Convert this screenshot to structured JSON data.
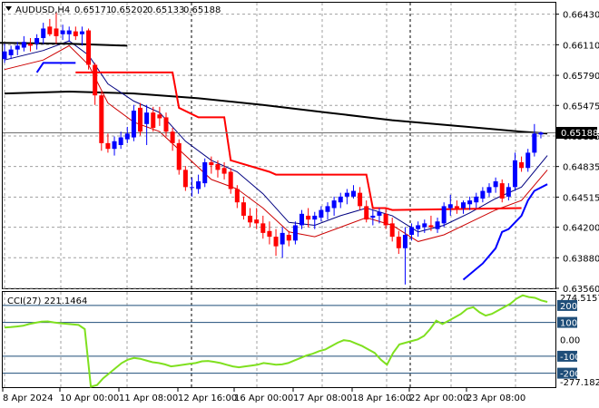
{
  "chart_data": {
    "type": "candlestick",
    "symbol": "AUDUSD,H4",
    "quote_line": [
      "0.65171",
      "0.65202",
      "0.65133",
      "0.65188"
    ],
    "current_price_label": "0.65188",
    "current_price": 0.65188,
    "price_axis": {
      "ticks": [
        "0.66430",
        "0.66110",
        "0.65790",
        "0.65475",
        "0.65155",
        "0.64835",
        "0.64515",
        "0.64200",
        "0.63880",
        "0.63560"
      ],
      "range": [
        0.6356,
        0.6655
      ]
    },
    "time_axis": {
      "labels": [
        "8 Apr 2024",
        "10 Apr 00:00",
        "11 Apr 08:00",
        "12 Apr 16:00",
        "16 Apr 00:00",
        "17 Apr 08:00",
        "18 Apr 16:00",
        "22 Apr 00:00",
        "23 Apr 08:00"
      ]
    },
    "candles": [
      {
        "o": 0.6596,
        "h": 0.6612,
        "l": 0.6592,
        "c": 0.6604
      },
      {
        "o": 0.66,
        "h": 0.661,
        "l": 0.6596,
        "c": 0.6606
      },
      {
        "o": 0.6606,
        "h": 0.6614,
        "l": 0.66,
        "c": 0.661
      },
      {
        "o": 0.6608,
        "h": 0.662,
        "l": 0.6604,
        "c": 0.6614
      },
      {
        "o": 0.6612,
        "h": 0.6618,
        "l": 0.6604,
        "c": 0.661
      },
      {
        "o": 0.6612,
        "h": 0.6622,
        "l": 0.6606,
        "c": 0.6618
      },
      {
        "o": 0.6618,
        "h": 0.6634,
        "l": 0.6612,
        "c": 0.6628
      },
      {
        "o": 0.663,
        "h": 0.6638,
        "l": 0.662,
        "c": 0.6622
      },
      {
        "o": 0.6628,
        "h": 0.6645,
        "l": 0.6612,
        "c": 0.662
      },
      {
        "o": 0.6622,
        "h": 0.6632,
        "l": 0.6616,
        "c": 0.6626
      },
      {
        "o": 0.6622,
        "h": 0.663,
        "l": 0.6614,
        "c": 0.6626
      },
      {
        "o": 0.6625,
        "h": 0.663,
        "l": 0.6616,
        "c": 0.662
      },
      {
        "o": 0.6622,
        "h": 0.663,
        "l": 0.661,
        "c": 0.6625
      },
      {
        "o": 0.6626,
        "h": 0.6628,
        "l": 0.6585,
        "c": 0.659
      },
      {
        "o": 0.659,
        "h": 0.6592,
        "l": 0.6548,
        "c": 0.6558
      },
      {
        "o": 0.6558,
        "h": 0.6562,
        "l": 0.65,
        "c": 0.6508
      },
      {
        "o": 0.6508,
        "h": 0.6518,
        "l": 0.6498,
        "c": 0.6502
      },
      {
        "o": 0.6502,
        "h": 0.6515,
        "l": 0.6495,
        "c": 0.651
      },
      {
        "o": 0.6506,
        "h": 0.652,
        "l": 0.6502,
        "c": 0.6514
      },
      {
        "o": 0.6512,
        "h": 0.6525,
        "l": 0.6508,
        "c": 0.6518
      },
      {
        "o": 0.6514,
        "h": 0.6548,
        "l": 0.651,
        "c": 0.6542
      },
      {
        "o": 0.6545,
        "h": 0.655,
        "l": 0.6516,
        "c": 0.652
      },
      {
        "o": 0.6528,
        "h": 0.6548,
        "l": 0.6506,
        "c": 0.654
      },
      {
        "o": 0.654,
        "h": 0.6546,
        "l": 0.652,
        "c": 0.6524
      },
      {
        "o": 0.6538,
        "h": 0.6546,
        "l": 0.6526,
        "c": 0.6534
      },
      {
        "o": 0.6535,
        "h": 0.654,
        "l": 0.6515,
        "c": 0.652
      },
      {
        "o": 0.652,
        "h": 0.6524,
        "l": 0.65,
        "c": 0.6508
      },
      {
        "o": 0.6508,
        "h": 0.6512,
        "l": 0.6475,
        "c": 0.648
      },
      {
        "o": 0.648,
        "h": 0.6484,
        "l": 0.6458,
        "c": 0.6462
      },
      {
        "o": 0.6462,
        "h": 0.6472,
        "l": 0.6452,
        "c": 0.6462
      },
      {
        "o": 0.646,
        "h": 0.6475,
        "l": 0.6455,
        "c": 0.6468
      },
      {
        "o": 0.6466,
        "h": 0.6492,
        "l": 0.6462,
        "c": 0.6488
      },
      {
        "o": 0.6488,
        "h": 0.6494,
        "l": 0.6476,
        "c": 0.6485
      },
      {
        "o": 0.6486,
        "h": 0.649,
        "l": 0.6472,
        "c": 0.648
      },
      {
        "o": 0.6482,
        "h": 0.6488,
        "l": 0.647,
        "c": 0.6476
      },
      {
        "o": 0.6478,
        "h": 0.6482,
        "l": 0.6455,
        "c": 0.646
      },
      {
        "o": 0.646,
        "h": 0.6464,
        "l": 0.644,
        "c": 0.6446
      },
      {
        "o": 0.6446,
        "h": 0.6452,
        "l": 0.6428,
        "c": 0.6432
      },
      {
        "o": 0.6432,
        "h": 0.644,
        "l": 0.642,
        "c": 0.6425
      },
      {
        "o": 0.6428,
        "h": 0.644,
        "l": 0.6418,
        "c": 0.6424
      },
      {
        "o": 0.6424,
        "h": 0.6432,
        "l": 0.6408,
        "c": 0.6414
      },
      {
        "o": 0.6416,
        "h": 0.6426,
        "l": 0.6402,
        "c": 0.641
      },
      {
        "o": 0.641,
        "h": 0.6418,
        "l": 0.639,
        "c": 0.64
      },
      {
        "o": 0.6402,
        "h": 0.642,
        "l": 0.6388,
        "c": 0.6414
      },
      {
        "o": 0.6412,
        "h": 0.6416,
        "l": 0.64,
        "c": 0.6406
      },
      {
        "o": 0.6406,
        "h": 0.6426,
        "l": 0.6402,
        "c": 0.6422
      },
      {
        "o": 0.6422,
        "h": 0.6438,
        "l": 0.6418,
        "c": 0.6434
      },
      {
        "o": 0.6432,
        "h": 0.644,
        "l": 0.642,
        "c": 0.6428
      },
      {
        "o": 0.6428,
        "h": 0.6436,
        "l": 0.6418,
        "c": 0.6432
      },
      {
        "o": 0.643,
        "h": 0.6442,
        "l": 0.6426,
        "c": 0.6438
      },
      {
        "o": 0.6436,
        "h": 0.6446,
        "l": 0.6428,
        "c": 0.6442
      },
      {
        "o": 0.644,
        "h": 0.6452,
        "l": 0.6432,
        "c": 0.6448
      },
      {
        "o": 0.6446,
        "h": 0.6456,
        "l": 0.644,
        "c": 0.6452
      },
      {
        "o": 0.6452,
        "h": 0.646,
        "l": 0.6444,
        "c": 0.6456
      },
      {
        "o": 0.6452,
        "h": 0.6464,
        "l": 0.645,
        "c": 0.6458
      },
      {
        "o": 0.6456,
        "h": 0.6462,
        "l": 0.6438,
        "c": 0.6442
      },
      {
        "o": 0.6442,
        "h": 0.6448,
        "l": 0.6425,
        "c": 0.6428
      },
      {
        "o": 0.643,
        "h": 0.6438,
        "l": 0.6422,
        "c": 0.6432
      },
      {
        "o": 0.6432,
        "h": 0.644,
        "l": 0.6424,
        "c": 0.6436
      },
      {
        "o": 0.6434,
        "h": 0.644,
        "l": 0.6418,
        "c": 0.6422
      },
      {
        "o": 0.6424,
        "h": 0.643,
        "l": 0.6405,
        "c": 0.641
      },
      {
        "o": 0.641,
        "h": 0.6416,
        "l": 0.6392,
        "c": 0.6398
      },
      {
        "o": 0.6398,
        "h": 0.642,
        "l": 0.636,
        "c": 0.6412
      },
      {
        "o": 0.6412,
        "h": 0.6424,
        "l": 0.6406,
        "c": 0.642
      },
      {
        "o": 0.6418,
        "h": 0.6426,
        "l": 0.641,
        "c": 0.6422
      },
      {
        "o": 0.642,
        "h": 0.6428,
        "l": 0.6414,
        "c": 0.6424
      },
      {
        "o": 0.6422,
        "h": 0.6432,
        "l": 0.6416,
        "c": 0.642
      },
      {
        "o": 0.6418,
        "h": 0.643,
        "l": 0.6414,
        "c": 0.6426
      },
      {
        "o": 0.6424,
        "h": 0.6446,
        "l": 0.642,
        "c": 0.6442
      },
      {
        "o": 0.644,
        "h": 0.6454,
        "l": 0.6432,
        "c": 0.6444
      },
      {
        "o": 0.6442,
        "h": 0.6448,
        "l": 0.6434,
        "c": 0.644
      },
      {
        "o": 0.644,
        "h": 0.6448,
        "l": 0.6434,
        "c": 0.6446
      },
      {
        "o": 0.6444,
        "h": 0.6452,
        "l": 0.6438,
        "c": 0.6448
      },
      {
        "o": 0.6446,
        "h": 0.6456,
        "l": 0.644,
        "c": 0.6452
      },
      {
        "o": 0.645,
        "h": 0.6462,
        "l": 0.6446,
        "c": 0.6458
      },
      {
        "o": 0.6456,
        "h": 0.6466,
        "l": 0.6452,
        "c": 0.6462
      },
      {
        "o": 0.6462,
        "h": 0.6472,
        "l": 0.6456,
        "c": 0.6468
      },
      {
        "o": 0.6466,
        "h": 0.647,
        "l": 0.6446,
        "c": 0.645
      },
      {
        "o": 0.6452,
        "h": 0.6466,
        "l": 0.6448,
        "c": 0.6462
      },
      {
        "o": 0.6462,
        "h": 0.6498,
        "l": 0.6458,
        "c": 0.649
      },
      {
        "o": 0.6488,
        "h": 0.6494,
        "l": 0.6478,
        "c": 0.6482
      },
      {
        "o": 0.6482,
        "h": 0.6502,
        "l": 0.6478,
        "c": 0.6498
      },
      {
        "o": 0.6498,
        "h": 0.6528,
        "l": 0.6494,
        "c": 0.6518
      },
      {
        "o": 0.6517,
        "h": 0.652,
        "l": 0.6513,
        "c": 0.6519
      }
    ],
    "indicator_lines": [
      {
        "color": "#000000",
        "points": [
          [
            0,
            0.656
          ],
          [
            10,
            0.6562
          ],
          [
            20,
            0.656
          ],
          [
            30,
            0.6555
          ],
          [
            40,
            0.6548
          ],
          [
            50,
            0.654
          ],
          [
            60,
            0.6532
          ],
          [
            70,
            0.6526
          ],
          [
            80,
            0.652
          ],
          [
            84,
            0.6518
          ]
        ]
      },
      {
        "color": "#000080",
        "points": [
          [
            0,
            0.6595
          ],
          [
            6,
            0.6605
          ],
          [
            10,
            0.6615
          ],
          [
            13,
            0.66
          ],
          [
            16,
            0.657
          ],
          [
            20,
            0.6552
          ],
          [
            24,
            0.654
          ],
          [
            28,
            0.651
          ],
          [
            32,
            0.649
          ],
          [
            36,
            0.6478
          ],
          [
            40,
            0.6455
          ],
          [
            44,
            0.6425
          ],
          [
            48,
            0.6422
          ],
          [
            52,
            0.6432
          ],
          [
            56,
            0.644
          ],
          [
            60,
            0.6432
          ],
          [
            64,
            0.6415
          ],
          [
            68,
            0.6422
          ],
          [
            72,
            0.6435
          ],
          [
            76,
            0.645
          ],
          [
            80,
            0.6462
          ],
          [
            84,
            0.6495
          ]
        ]
      },
      {
        "color": "#cc0000",
        "points": [
          [
            0,
            0.6585
          ],
          [
            6,
            0.6595
          ],
          [
            10,
            0.661
          ],
          [
            13,
            0.659
          ],
          [
            16,
            0.655
          ],
          [
            20,
            0.653
          ],
          [
            24,
            0.652
          ],
          [
            28,
            0.6495
          ],
          [
            32,
            0.647
          ],
          [
            36,
            0.646
          ],
          [
            40,
            0.644
          ],
          [
            44,
            0.6415
          ],
          [
            48,
            0.641
          ],
          [
            52,
            0.642
          ],
          [
            56,
            0.643
          ],
          [
            60,
            0.6422
          ],
          [
            64,
            0.6405
          ],
          [
            68,
            0.6412
          ],
          [
            72,
            0.6425
          ],
          [
            76,
            0.6438
          ],
          [
            80,
            0.6448
          ],
          [
            84,
            0.648
          ]
        ]
      },
      {
        "color": "#0000ff",
        "points": [
          [
            5,
            0.6582
          ],
          [
            6,
            0.6592
          ],
          [
            11,
            0.6592
          ]
        ]
      },
      {
        "color": "#0000ff",
        "points": [
          [
            71,
            0.6365
          ],
          [
            74,
            0.6382
          ],
          [
            76,
            0.6398
          ],
          [
            77,
            0.6415
          ],
          [
            78,
            0.6418
          ],
          [
            80,
            0.6432
          ],
          [
            81,
            0.6448
          ],
          [
            82,
            0.6458
          ],
          [
            84,
            0.6465
          ]
        ]
      },
      {
        "color": "#ff0000",
        "points": [
          [
            11,
            0.6582
          ],
          [
            26,
            0.6582
          ],
          [
            27,
            0.6545
          ],
          [
            30,
            0.6535
          ],
          [
            34,
            0.6535
          ],
          [
            35,
            0.649
          ],
          [
            41,
            0.6478
          ],
          [
            42,
            0.6475
          ],
          [
            56,
            0.6475
          ],
          [
            57,
            0.644
          ],
          [
            59,
            0.644
          ],
          [
            60,
            0.6438
          ],
          [
            80,
            0.644
          ]
        ]
      },
      {
        "color": "#000000",
        "points": [
          [
            -1,
            0.6613
          ],
          [
            10,
            0.6612
          ],
          [
            19,
            0.661
          ]
        ]
      }
    ],
    "cci": {
      "label": "CCI(27) 221.1464",
      "axis_labels": [
        "274.5157",
        "200",
        "100",
        "0.00",
        "-100",
        "-200",
        "-277.182"
      ],
      "range": [
        -277.182,
        274.5157
      ],
      "levels": [
        200,
        100,
        -100,
        -200
      ],
      "values": [
        70,
        72,
        76,
        80,
        90,
        98,
        104,
        106,
        100,
        95,
        92,
        88,
        85,
        60,
        -280,
        -270,
        -230,
        -200,
        -170,
        -140,
        -120,
        -110,
        -115,
        -125,
        -135,
        -140,
        -148,
        -160,
        -155,
        -150,
        -145,
        -140,
        -130,
        -128,
        -133,
        -140,
        -150,
        -160,
        -165,
        -160,
        -155,
        -150,
        -140,
        -145,
        -150,
        -148,
        -140,
        -125,
        -110,
        -95,
        -85,
        -70,
        -60,
        -40,
        -20,
        -5,
        -10,
        -25,
        -40,
        -60,
        -80,
        -120,
        -150,
        -80,
        -30,
        -20,
        -10,
        0,
        20,
        60,
        110,
        90,
        110,
        130,
        150,
        180,
        190,
        160,
        140,
        150,
        170,
        190,
        210,
        240,
        260,
        250,
        245,
        230,
        221
      ]
    }
  }
}
